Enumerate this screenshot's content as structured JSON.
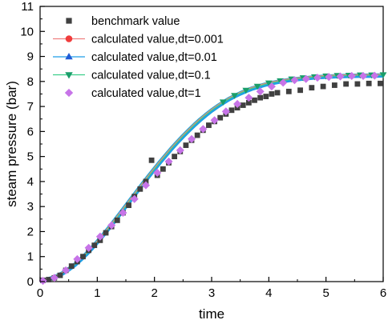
{
  "chart_data": {
    "type": "line",
    "xlabel": "time",
    "ylabel": "steam pressure (bar)",
    "xlim": [
      0,
      6
    ],
    "ylim": [
      0,
      11
    ],
    "xticks": [
      "0",
      "1",
      "2",
      "3",
      "4",
      "5",
      "6"
    ],
    "yticks": [
      "0",
      "1",
      "2",
      "3",
      "4",
      "5",
      "6",
      "7",
      "8",
      "9",
      "10",
      "11"
    ],
    "grid": false,
    "legend_position": "top-left",
    "series": [
      {
        "name": "benchmark value",
        "style": "markers",
        "marker": "square",
        "color": "#404040",
        "points": [
          [
            0.05,
            0.05
          ],
          [
            0.15,
            0.08
          ],
          [
            0.25,
            0.15
          ],
          [
            0.35,
            0.25
          ],
          [
            0.45,
            0.45
          ],
          [
            0.55,
            0.62
          ],
          [
            0.65,
            0.8
          ],
          [
            0.75,
            1.0
          ],
          [
            0.85,
            1.25
          ],
          [
            0.95,
            1.45
          ],
          [
            1.05,
            1.65
          ],
          [
            1.15,
            1.95
          ],
          [
            1.25,
            2.2
          ],
          [
            1.35,
            2.45
          ],
          [
            1.45,
            2.75
          ],
          [
            1.55,
            3.05
          ],
          [
            1.65,
            3.4
          ],
          [
            1.75,
            3.7
          ],
          [
            1.85,
            4.0
          ],
          [
            1.95,
            4.85
          ],
          [
            2.05,
            4.25
          ],
          [
            2.15,
            4.5
          ],
          [
            2.25,
            4.75
          ],
          [
            2.35,
            5.0
          ],
          [
            2.45,
            5.2
          ],
          [
            2.55,
            5.45
          ],
          [
            2.65,
            5.65
          ],
          [
            2.75,
            5.85
          ],
          [
            2.85,
            6.05
          ],
          [
            2.95,
            6.25
          ],
          [
            3.05,
            6.4
          ],
          [
            3.15,
            6.55
          ],
          [
            3.25,
            6.7
          ],
          [
            3.35,
            6.85
          ],
          [
            3.45,
            6.95
          ],
          [
            3.55,
            7.05
          ],
          [
            3.65,
            7.15
          ],
          [
            3.75,
            7.25
          ],
          [
            3.85,
            7.35
          ],
          [
            3.95,
            7.4
          ],
          [
            4.05,
            7.5
          ],
          [
            4.15,
            7.55
          ],
          [
            4.35,
            7.6
          ],
          [
            4.55,
            7.65
          ],
          [
            4.75,
            7.75
          ],
          [
            4.95,
            7.8
          ],
          [
            5.15,
            7.85
          ],
          [
            5.35,
            7.9
          ],
          [
            5.55,
            7.9
          ],
          [
            5.75,
            7.92
          ],
          [
            5.95,
            7.92
          ]
        ]
      },
      {
        "name": "calculated value,dt=0.001",
        "style": "line+marker",
        "marker": "circle",
        "color": "#f03c3c",
        "line_color": "#f08080"
      },
      {
        "name": "calculated value,dt=0.01",
        "style": "line+marker",
        "marker": "triangle-up",
        "color": "#1f5bd6",
        "line_color": "#1f9ee6"
      },
      {
        "name": "calculated value,dt=0.1",
        "style": "line+marker",
        "marker": "triangle-down",
        "color": "#1a9e6a",
        "line_color": "#3ccf8a"
      },
      {
        "name": "calculated value,dt=1",
        "style": "markers",
        "marker": "diamond",
        "color": "#c774e8"
      }
    ],
    "calculated_curve": {
      "x": [
        0,
        0.1,
        0.2,
        0.3,
        0.4,
        0.5,
        0.6,
        0.7,
        0.8,
        0.9,
        1.0,
        1.1,
        1.2,
        1.3,
        1.4,
        1.5,
        1.6,
        1.7,
        1.8,
        1.9,
        2.0,
        2.1,
        2.2,
        2.3,
        2.4,
        2.5,
        2.6,
        2.7,
        2.8,
        2.9,
        3.0,
        3.1,
        3.2,
        3.3,
        3.4,
        3.5,
        3.6,
        3.7,
        3.8,
        3.9,
        4.0,
        4.2,
        4.4,
        4.6,
        4.8,
        5.0,
        5.2,
        5.4,
        5.6,
        5.8,
        6.0
      ],
      "y": [
        0.02,
        0.06,
        0.13,
        0.22,
        0.34,
        0.49,
        0.66,
        0.86,
        1.08,
        1.32,
        1.58,
        1.85,
        2.13,
        2.42,
        2.72,
        3.02,
        3.32,
        3.62,
        3.92,
        4.21,
        4.5,
        4.78,
        5.05,
        5.32,
        5.57,
        5.81,
        6.04,
        6.26,
        6.47,
        6.66,
        6.84,
        7.0,
        7.15,
        7.29,
        7.41,
        7.52,
        7.62,
        7.71,
        7.78,
        7.85,
        7.91,
        8.0,
        8.07,
        8.12,
        8.16,
        8.19,
        8.21,
        8.22,
        8.23,
        8.23,
        8.24
      ]
    },
    "dt1_points": {
      "x": [
        0.05,
        0.25,
        0.45,
        0.65,
        0.85,
        1.05,
        1.25,
        1.45,
        1.65,
        1.85,
        2.05,
        2.25,
        2.45,
        2.65,
        2.85,
        3.05,
        3.25,
        3.45,
        3.65,
        3.85,
        4.05,
        4.25,
        4.45,
        4.65,
        4.85,
        5.05,
        5.25,
        5.45,
        5.65,
        5.85
      ],
      "y": [
        0.03,
        0.15,
        0.45,
        0.9,
        1.35,
        1.8,
        2.25,
        2.75,
        3.3,
        3.85,
        4.35,
        4.8,
        5.25,
        5.7,
        6.1,
        6.45,
        6.8,
        7.1,
        7.35,
        7.6,
        7.8,
        7.95,
        8.05,
        8.1,
        8.15,
        8.18,
        8.2,
        8.22,
        8.22,
        8.23
      ]
    }
  }
}
